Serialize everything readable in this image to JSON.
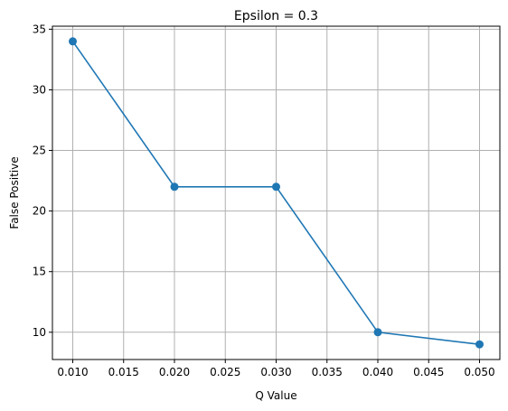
{
  "chart_data": {
    "type": "line",
    "title": "Epsilon = 0.3",
    "xlabel": "Q Value",
    "ylabel": "False Positive",
    "x": [
      0.01,
      0.02,
      0.03,
      0.04,
      0.05
    ],
    "series": [
      {
        "values": [
          34,
          22,
          22,
          10,
          9
        ],
        "color": "#1f77b4",
        "marker": "circle"
      }
    ],
    "xlim": [
      0.008,
      0.052
    ],
    "ylim": [
      7.75,
      35.25
    ],
    "x_ticks": [
      "0.010",
      "0.015",
      "0.020",
      "0.025",
      "0.030",
      "0.035",
      "0.040",
      "0.045",
      "0.050"
    ],
    "y_ticks": [
      "10",
      "15",
      "20",
      "25",
      "30",
      "35"
    ],
    "grid": true,
    "grid_color": "#b0b0b0"
  }
}
